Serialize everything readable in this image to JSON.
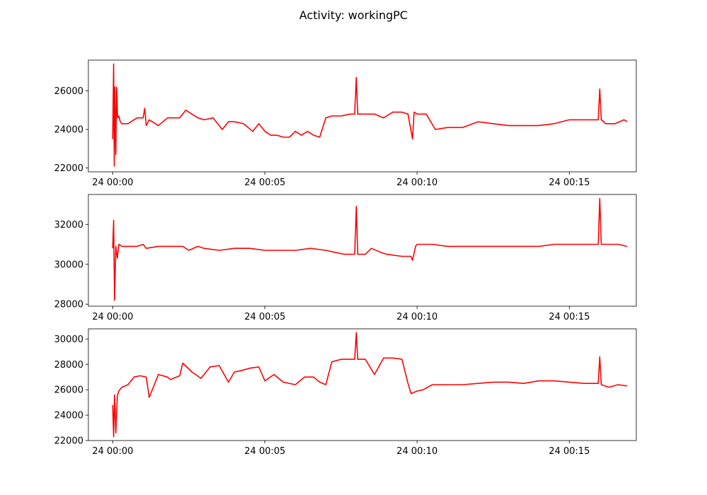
{
  "figure": {
    "title": "Activity: workingPC"
  },
  "chart_data": [
    {
      "type": "line",
      "title": "",
      "xlabel": "",
      "ylabel": "",
      "grid": false,
      "color": "#ff0000",
      "x_ticks": [
        "24 00:00",
        "24 00:05",
        "24 00:10",
        "24 00:15"
      ],
      "y_ticks": [
        "22000",
        "24000",
        "26000"
      ],
      "xlim": [
        -0.8,
        17.2
      ],
      "ylim": [
        21800,
        27600
      ],
      "series": [
        {
          "x": [
            0,
            0.03,
            0.05,
            0.07,
            0.1,
            0.13,
            0.16,
            0.2,
            0.25,
            0.3,
            0.5,
            0.7,
            0.8,
            1.0,
            1.05,
            1.1,
            1.2,
            1.5,
            1.8,
            2.0,
            2.2,
            2.4,
            2.6,
            2.8,
            3.0,
            3.3,
            3.6,
            3.8,
            4.0,
            4.3,
            4.6,
            4.8,
            5.0,
            5.2,
            5.4,
            5.6,
            5.8,
            6.0,
            6.2,
            6.4,
            6.6,
            6.8,
            7.0,
            7.2,
            7.5,
            7.8,
            7.95,
            8.0,
            8.05,
            8.3,
            8.6,
            8.9,
            9.2,
            9.5,
            9.7,
            9.85,
            9.9,
            10.0,
            10.3,
            10.6,
            11.0,
            11.5,
            12.0,
            12.5,
            13.0,
            13.5,
            14.0,
            14.5,
            15.0,
            15.5,
            15.95,
            16.0,
            16.05,
            16.2,
            16.5,
            16.8,
            16.9
          ],
          "y": [
            23500,
            27400,
            22100,
            26200,
            22700,
            26200,
            24600,
            24700,
            24400,
            24300,
            24300,
            24500,
            24600,
            24600,
            25100,
            24200,
            24500,
            24200,
            24600,
            24600,
            24600,
            25000,
            24800,
            24600,
            24500,
            24600,
            24000,
            24400,
            24400,
            24300,
            23900,
            24300,
            23900,
            23700,
            23700,
            23600,
            23600,
            23900,
            23700,
            23900,
            23700,
            23600,
            24600,
            24700,
            24700,
            24800,
            24800,
            26700,
            24800,
            24800,
            24800,
            24600,
            24900,
            24900,
            24800,
            23500,
            24900,
            24800,
            24800,
            24000,
            24100,
            24100,
            24400,
            24300,
            24200,
            24200,
            24200,
            24300,
            24500,
            24500,
            24500,
            26100,
            24500,
            24300,
            24300,
            24500,
            24400
          ]
        }
      ]
    },
    {
      "type": "line",
      "title": "",
      "xlabel": "",
      "ylabel": "",
      "grid": false,
      "color": "#ff0000",
      "x_ticks": [
        "24 00:00",
        "24 00:05",
        "24 00:10",
        "24 00:15"
      ],
      "y_ticks": [
        "28000",
        "30000",
        "32000"
      ],
      "xlim": [
        -0.8,
        17.2
      ],
      "ylim": [
        27900,
        33500
      ],
      "series": [
        {
          "x": [
            0,
            0.03,
            0.06,
            0.1,
            0.15,
            0.2,
            0.3,
            0.5,
            0.8,
            1.0,
            1.1,
            1.5,
            2.0,
            2.3,
            2.5,
            2.8,
            3.0,
            3.5,
            4.0,
            4.5,
            5.0,
            5.5,
            6.0,
            6.5,
            7.0,
            7.3,
            7.6,
            7.9,
            7.95,
            8.0,
            8.05,
            8.3,
            8.5,
            8.8,
            9.0,
            9.5,
            9.8,
            9.85,
            9.95,
            10.0,
            10.5,
            11.0,
            11.5,
            12.0,
            12.5,
            13.0,
            13.5,
            14.0,
            14.5,
            15.0,
            15.5,
            15.95,
            16.0,
            16.05,
            16.3,
            16.6,
            16.9
          ],
          "y": [
            30800,
            32200,
            28200,
            30900,
            30300,
            31000,
            30900,
            30900,
            30900,
            31000,
            30800,
            30900,
            30900,
            30900,
            30700,
            30900,
            30800,
            30700,
            30800,
            30800,
            30700,
            30700,
            30700,
            30800,
            30700,
            30600,
            30500,
            30500,
            30500,
            32900,
            30500,
            30500,
            30800,
            30600,
            30500,
            30400,
            30400,
            30200,
            30900,
            31000,
            31000,
            30900,
            30900,
            30900,
            30900,
            30900,
            30900,
            30900,
            31000,
            31000,
            31000,
            31000,
            33300,
            31000,
            31000,
            31000,
            30900
          ]
        }
      ]
    },
    {
      "type": "line",
      "title": "",
      "xlabel": "",
      "ylabel": "",
      "grid": false,
      "color": "#ff0000",
      "x_ticks": [
        "24 00:00",
        "24 00:05",
        "24 00:10",
        "24 00:15"
      ],
      "y_ticks": [
        "22000",
        "24000",
        "26000",
        "28000",
        "30000"
      ],
      "xlim": [
        -0.8,
        17.2
      ],
      "ylim": [
        22000,
        30800
      ],
      "series": [
        {
          "x": [
            0,
            0.03,
            0.06,
            0.1,
            0.15,
            0.2,
            0.3,
            0.5,
            0.7,
            0.9,
            1.1,
            1.2,
            1.5,
            1.8,
            1.9,
            2.2,
            2.3,
            2.6,
            2.9,
            3.2,
            3.5,
            3.8,
            4.0,
            4.2,
            4.5,
            4.8,
            5.0,
            5.3,
            5.6,
            6.0,
            6.3,
            6.6,
            6.8,
            7.0,
            7.2,
            7.5,
            7.9,
            7.95,
            8.0,
            8.05,
            8.3,
            8.6,
            8.9,
            9.2,
            9.5,
            9.7,
            9.8,
            10.0,
            10.2,
            10.5,
            11.0,
            11.5,
            12.0,
            12.5,
            13.0,
            13.5,
            14.0,
            14.5,
            15.0,
            15.5,
            15.95,
            16.0,
            16.05,
            16.3,
            16.6,
            16.9
          ],
          "y": [
            24800,
            22300,
            25600,
            22600,
            25500,
            25900,
            26200,
            26400,
            27000,
            27100,
            27000,
            25400,
            27200,
            27000,
            26800,
            27100,
            28100,
            27400,
            26900,
            27800,
            27900,
            26600,
            27400,
            27500,
            27700,
            27800,
            26700,
            27200,
            26600,
            26400,
            27000,
            27000,
            26600,
            26400,
            28200,
            28400,
            28400,
            28400,
            30500,
            28400,
            28400,
            27200,
            28500,
            28500,
            28400,
            26500,
            25700,
            25900,
            26000,
            26400,
            26400,
            26400,
            26500,
            26600,
            26600,
            26500,
            26700,
            26700,
            26600,
            26500,
            26500,
            28600,
            26400,
            26200,
            26400,
            26300
          ]
        }
      ]
    }
  ]
}
